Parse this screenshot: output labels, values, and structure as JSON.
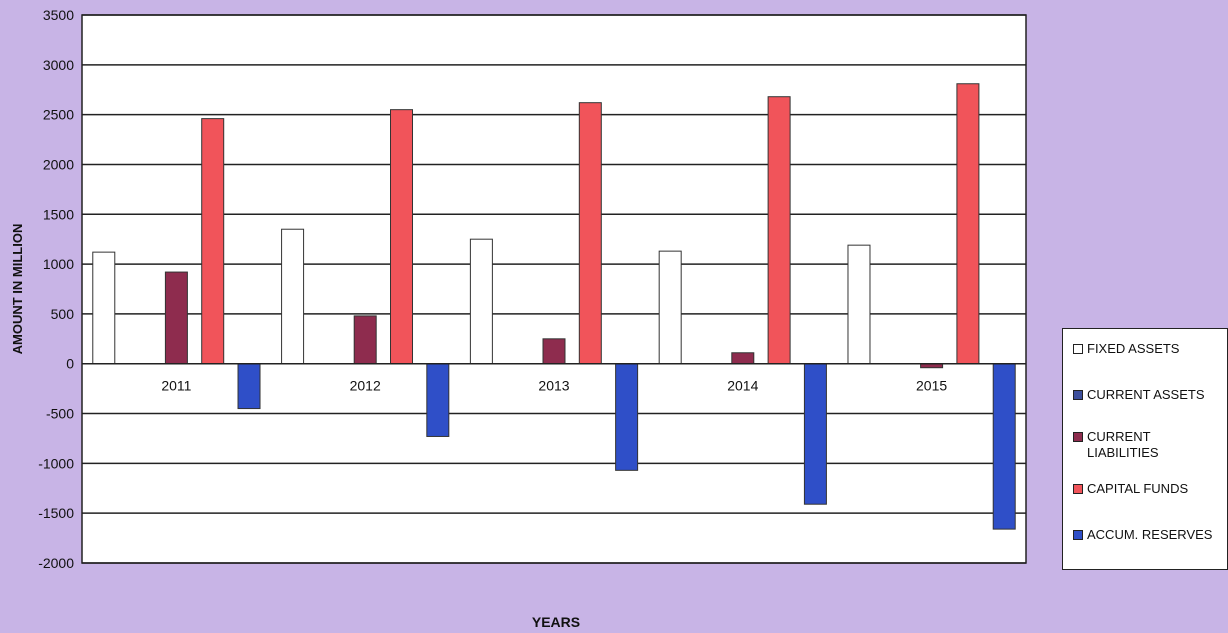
{
  "chart_data": {
    "type": "bar",
    "title": "",
    "xlabel": "YEARS",
    "ylabel": "AMOUNT IN MILLION",
    "categories": [
      "2011",
      "2012",
      "2013",
      "2014",
      "2015"
    ],
    "ylim": [
      -2000,
      3500
    ],
    "yticks": [
      "3500",
      "3000",
      "2500",
      "2000",
      "1500",
      "1000",
      "500",
      "0",
      "-500",
      "-1000",
      "-1500",
      "-2000"
    ],
    "grid": true,
    "legend_position": "right",
    "series": [
      {
        "name": "FIXED ASSETS",
        "color": "#ffffff",
        "values": [
          1120,
          1350,
          1250,
          1130,
          1190
        ]
      },
      {
        "name": "CURRENT ASSETS",
        "color": "#3d4f9c",
        "values": [
          0,
          0,
          0,
          0,
          0
        ]
      },
      {
        "name": "CURRENT LIABILITIES",
        "color": "#8e2c4e",
        "values": [
          920,
          480,
          250,
          110,
          -40
        ]
      },
      {
        "name": "CAPITAL FUNDS",
        "color": "#f1545a",
        "values": [
          2460,
          2550,
          2620,
          2680,
          2810
        ]
      },
      {
        "name": "ACCUM. RESERVES",
        "color": "#2f4fc8",
        "values": [
          -450,
          -730,
          -1070,
          -1410,
          -1660
        ]
      }
    ]
  }
}
